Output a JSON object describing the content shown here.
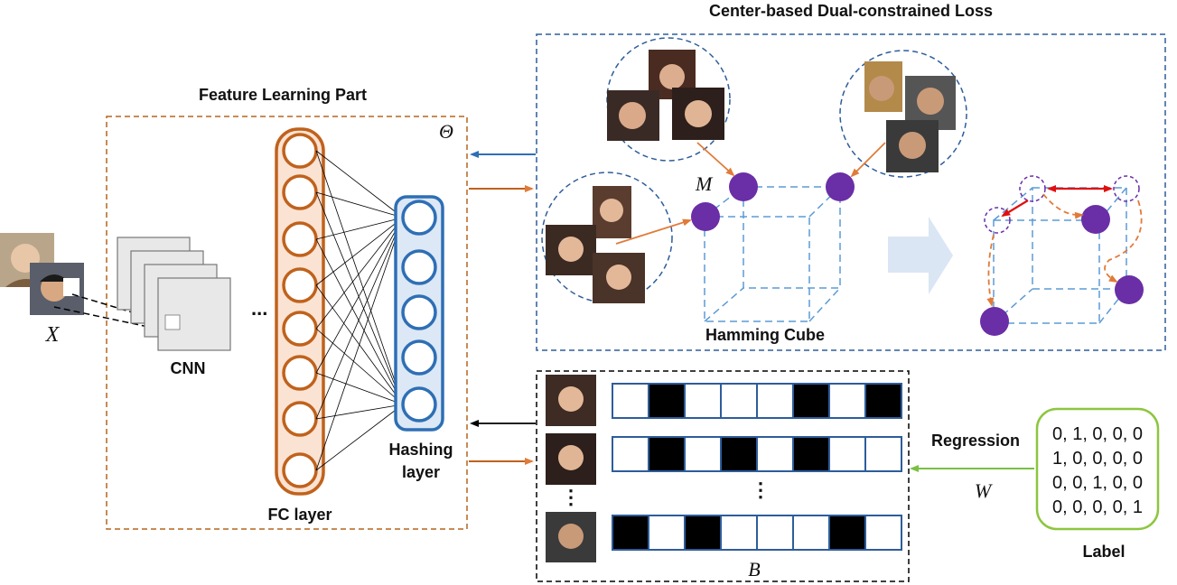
{
  "titles": {
    "feature_learning": "Feature Learning Part",
    "loss": "Center-based Dual-constrained Loss"
  },
  "labels": {
    "theta": "Θ",
    "m": "M",
    "x": "X",
    "cnn": "CNN",
    "ellipsis_cnn": "...",
    "fc_layer": "FC layer",
    "hashing_line1": "Hashing",
    "hashing_line2": "layer",
    "hamming_cube": "Hamming Cube",
    "regression": "Regression",
    "w": "W",
    "b": "B",
    "label": "Label",
    "vdots": "⋮"
  },
  "label_matrix": [
    "0, 1, 0, 0, 0",
    "1, 0, 0, 0, 0",
    "0, 0, 1, 0, 0",
    "0, 0, 0, 0, 1"
  ],
  "hash_codes": [
    [
      0,
      1,
      0,
      0,
      0,
      1,
      0,
      1
    ],
    [
      0,
      1,
      0,
      1,
      0,
      1,
      0,
      0
    ],
    [
      1,
      0,
      1,
      0,
      0,
      0,
      1,
      0
    ]
  ],
  "colors": {
    "feature_border": "#b5651d",
    "loss_border": "#2e5d9a",
    "fc_stroke": "#c0621c",
    "fc_fill": "#fbe3d3",
    "hash_stroke": "#2e6fb5",
    "hash_fill": "#dce8f5",
    "cube_stroke": "#5b9bd5",
    "node_fill": "#6a2ea6",
    "orange_arrow": "#e07b39",
    "red_arrow": "#e01010",
    "green": "#7ac143",
    "label_box": "#8cc63f"
  }
}
